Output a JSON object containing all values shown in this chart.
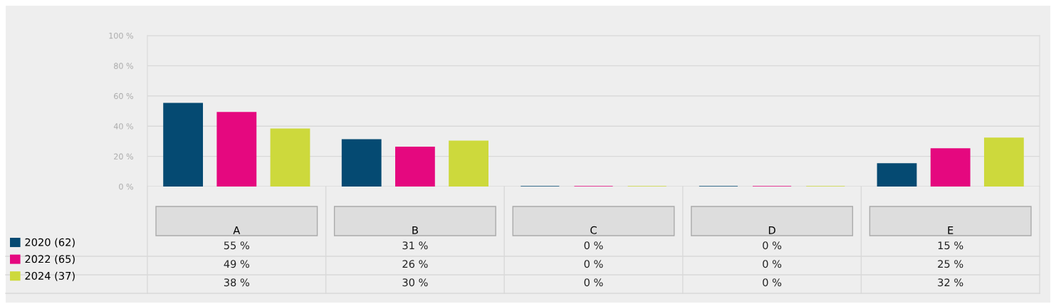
{
  "chart_data": {
    "type": "bar",
    "categories": [
      "A",
      "B",
      "C",
      "D",
      "E"
    ],
    "series": [
      {
        "name": "2020 (62)",
        "color": "#054a72",
        "values": [
          55,
          31,
          0,
          0,
          15
        ],
        "value_labels": [
          "55 %",
          "31 %",
          "0 %",
          "0 %",
          "15 %"
        ]
      },
      {
        "name": "2022 (65)",
        "color": "#e5087f",
        "values": [
          49,
          26,
          0,
          0,
          25
        ],
        "value_labels": [
          "49 %",
          "26 %",
          "0 %",
          "0 %",
          "25 %"
        ]
      },
      {
        "name": "2024 (37)",
        "color": "#cdd93c",
        "values": [
          38,
          30,
          0,
          0,
          32
        ],
        "value_labels": [
          "38 %",
          "30 %",
          "0 %",
          "0 %",
          "32 %"
        ]
      }
    ],
    "ylim": [
      0,
      100
    ],
    "yticks": [
      {
        "value": 0,
        "label": "0 %"
      },
      {
        "value": 20,
        "label": "20 %"
      },
      {
        "value": 40,
        "label": "40 %"
      },
      {
        "value": 60,
        "label": "60 %"
      },
      {
        "value": 80,
        "label": "80 %"
      },
      {
        "value": 100,
        "label": "100 %"
      }
    ],
    "grid": "y",
    "legend": "bottom left"
  }
}
